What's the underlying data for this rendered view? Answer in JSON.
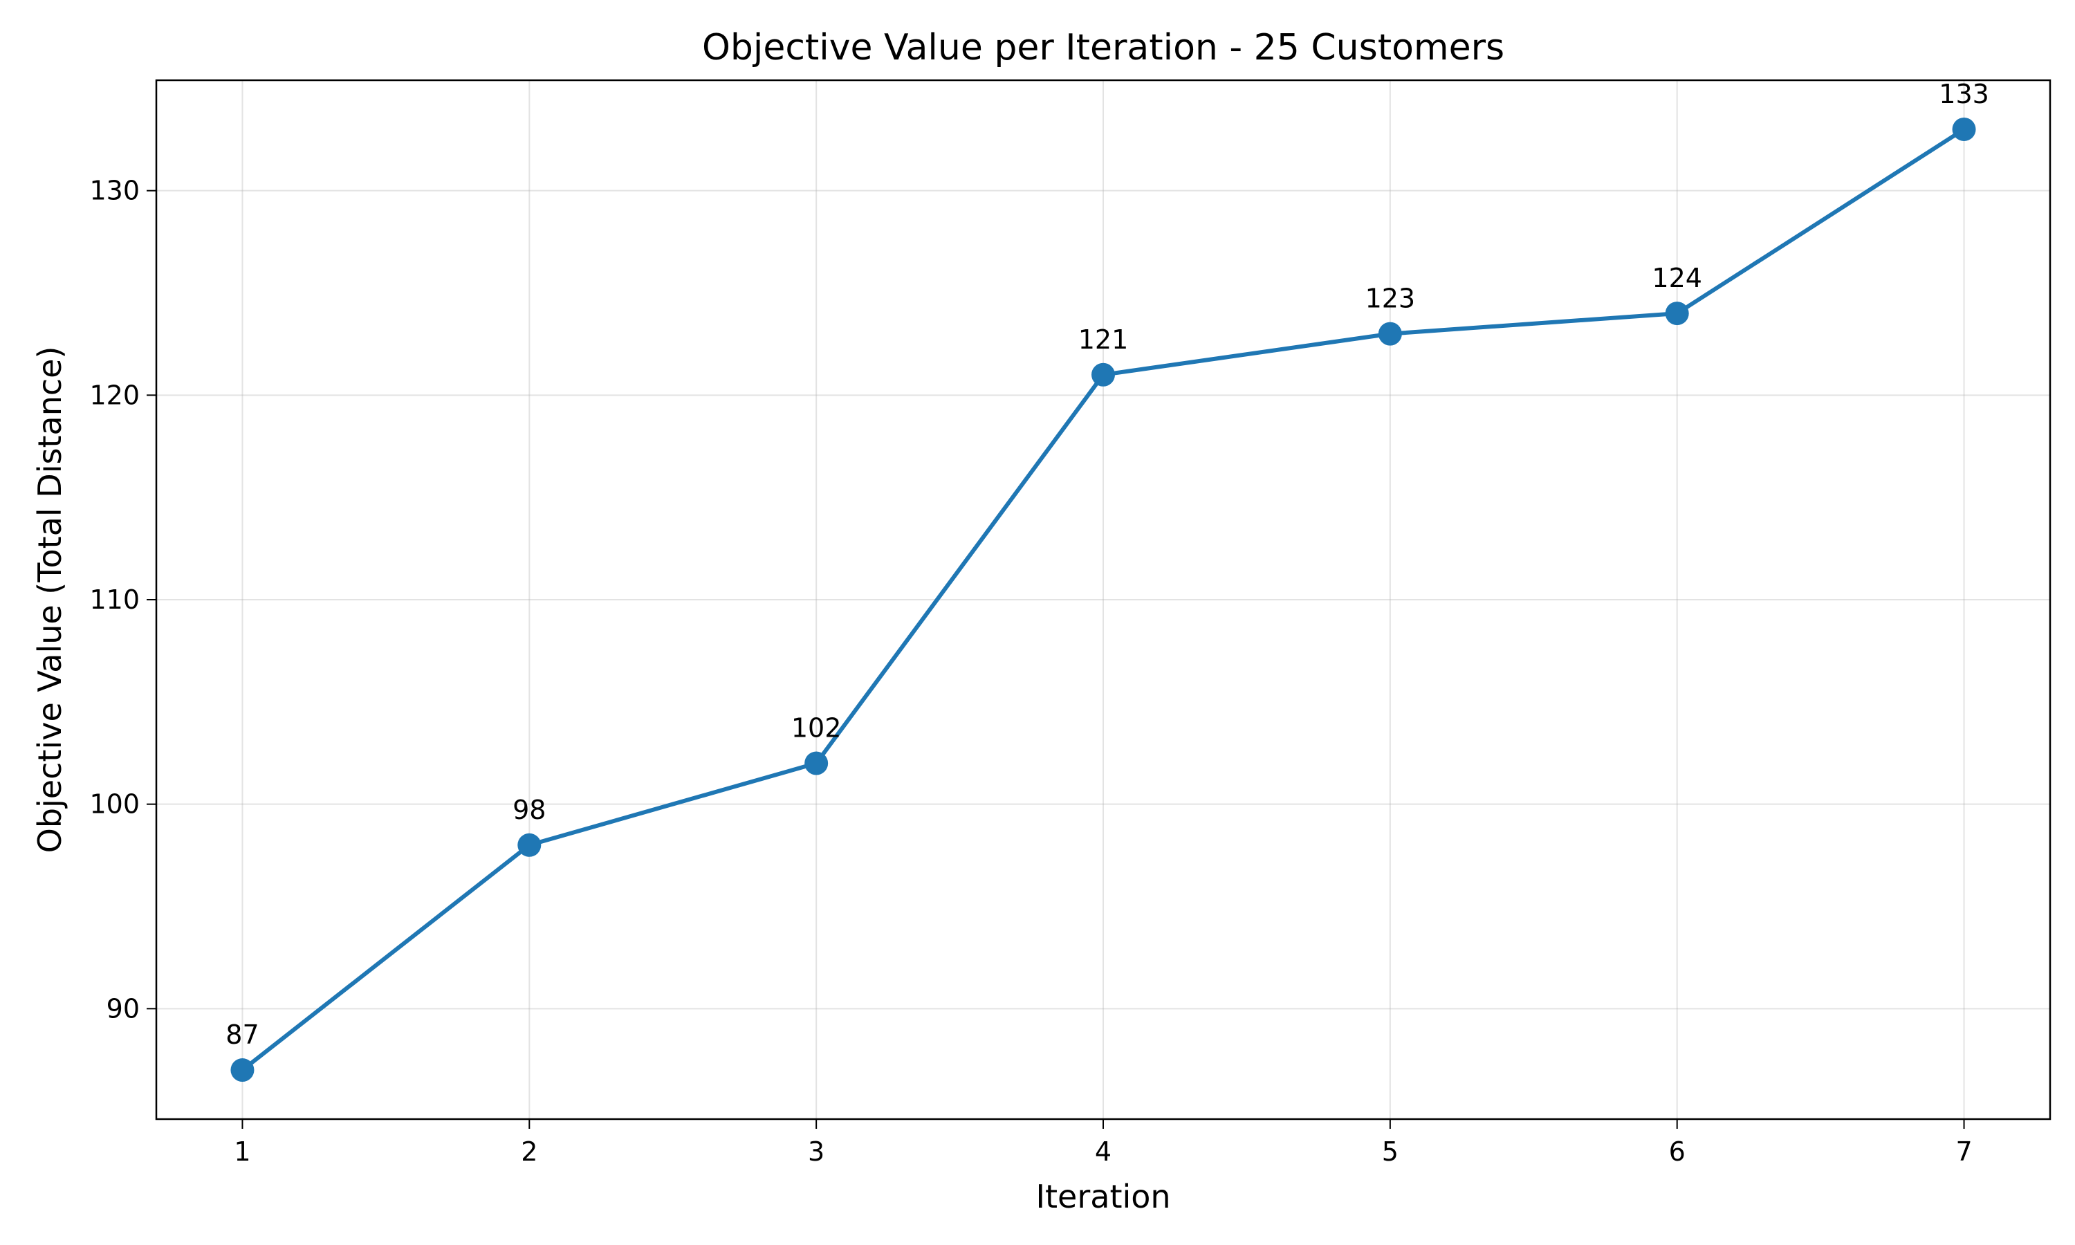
{
  "chart_data": {
    "type": "line",
    "title": "Objective Value per Iteration - 25 Customers",
    "xlabel": "Iteration",
    "ylabel": "Objective Value (Total Distance)",
    "x": [
      1,
      2,
      3,
      4,
      5,
      6,
      7
    ],
    "xticks": [
      "1",
      "2",
      "3",
      "4",
      "5",
      "6",
      "7"
    ],
    "yticks": [
      "90",
      "100",
      "110",
      "120",
      "130"
    ],
    "xlim": [
      0.7,
      7.3
    ],
    "ylim": [
      84.6,
      135.4
    ],
    "series": [
      {
        "values": [
          87,
          98,
          102,
          121,
          123,
          124,
          133
        ],
        "data_labels": [
          "87",
          "98",
          "102",
          "121",
          "123",
          "124",
          "133"
        ],
        "color": "#1f77b4",
        "marker": "circle"
      }
    ],
    "grid": true,
    "legend": "none"
  }
}
